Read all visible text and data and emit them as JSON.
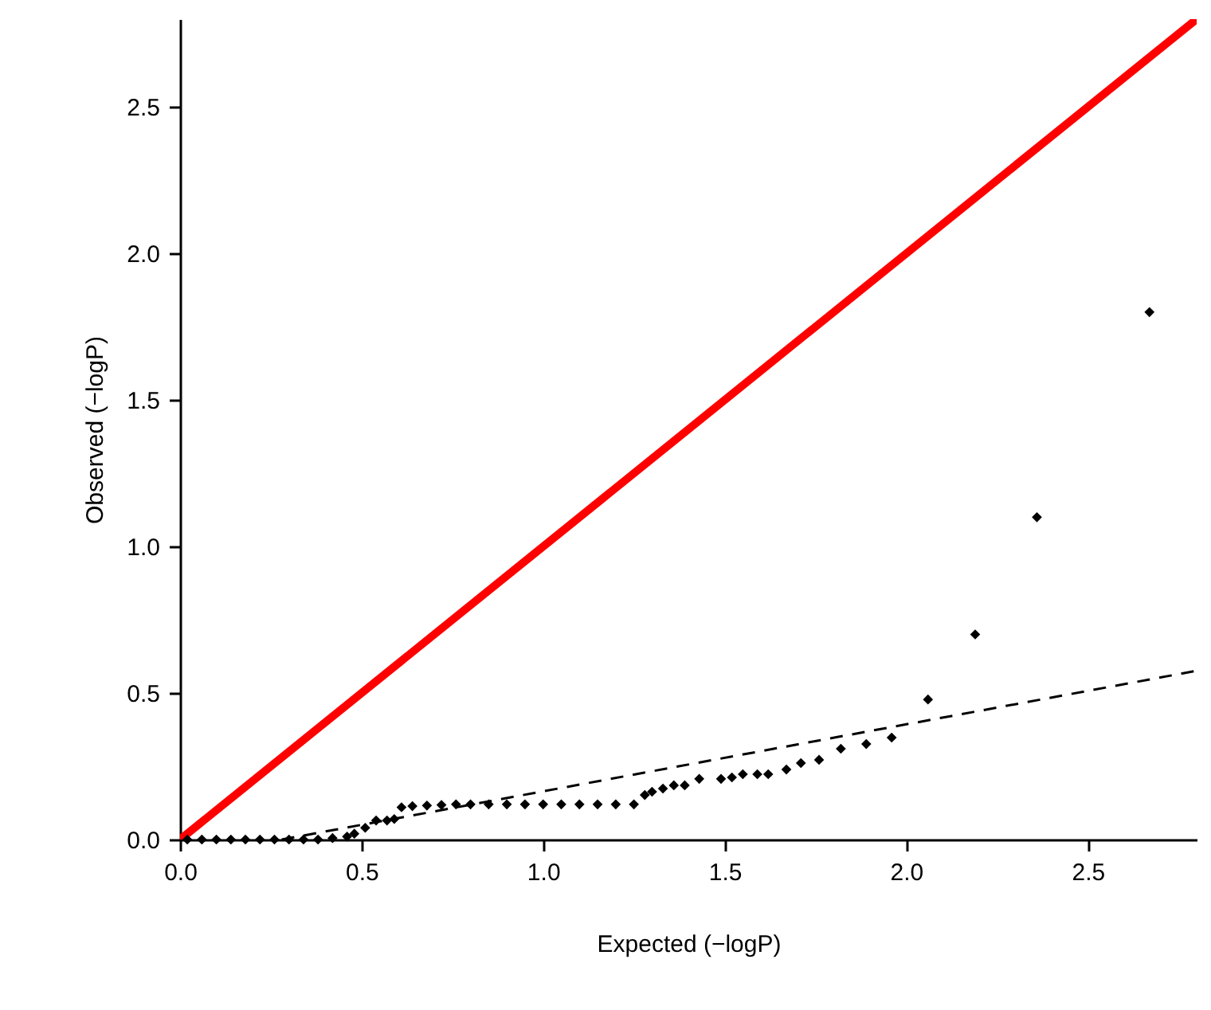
{
  "chart_data": {
    "type": "scatter",
    "xlabel": "Expected (−logP)",
    "ylabel": "Observed (−logP)",
    "xlim": [
      0,
      2.8
    ],
    "ylim": [
      0,
      2.8
    ],
    "xticks": [
      {
        "value": 0,
        "label": "0.0"
      },
      {
        "value": 0.5,
        "label": "0.5"
      },
      {
        "value": 1,
        "label": "1.0"
      },
      {
        "value": 1.5,
        "label": "1.5"
      },
      {
        "value": 2,
        "label": "2.0"
      },
      {
        "value": 2.5,
        "label": "2.5"
      }
    ],
    "yticks": [
      {
        "value": 0,
        "label": "0.0"
      },
      {
        "value": 0.5,
        "label": "0.5"
      },
      {
        "value": 1,
        "label": "1.0"
      },
      {
        "value": 1.5,
        "label": "1.5"
      },
      {
        "value": 2,
        "label": "2.0"
      },
      {
        "value": 2.5,
        "label": "2.5"
      }
    ],
    "series": [
      {
        "type": "line",
        "color": "#ff0000",
        "line_style": "solid",
        "x": [
          0,
          2.8
        ],
        "values": [
          0,
          2.8
        ]
      },
      {
        "type": "line",
        "color": "#000000",
        "line_style": "dashed",
        "x": [
          0.28,
          2.8
        ],
        "values": [
          0,
          0.576
        ]
      },
      {
        "marker": "diamond",
        "color": "#000000",
        "x": [
          0.02,
          0.06,
          0.1,
          0.14,
          0.18,
          0.22,
          0.26,
          0.3,
          0.34,
          0.38,
          0.42,
          0.46,
          0.48,
          0.51,
          0.54,
          0.57,
          0.59,
          0.61,
          0.64,
          0.68,
          0.72,
          0.76,
          0.8,
          0.85,
          0.9,
          0.95,
          1.0,
          1.05,
          1.1,
          1.15,
          1.2,
          1.25,
          1.28,
          1.3,
          1.33,
          1.36,
          1.39,
          1.43,
          1.49,
          1.52,
          1.55,
          1.59,
          1.62,
          1.67,
          1.71,
          1.76,
          1.82,
          1.89,
          1.96,
          2.06,
          2.19,
          2.36,
          2.67
        ],
        "values": [
          0,
          0,
          0,
          0,
          0,
          0,
          0,
          0,
          0,
          0,
          0.005,
          0.01,
          0.02,
          0.04,
          0.065,
          0.065,
          0.07,
          0.11,
          0.114,
          0.116,
          0.118,
          0.12,
          0.12,
          0.12,
          0.12,
          0.12,
          0.12,
          0.12,
          0.12,
          0.12,
          0.12,
          0.12,
          0.152,
          0.163,
          0.174,
          0.185,
          0.185,
          0.207,
          0.207,
          0.212,
          0.223,
          0.223,
          0.223,
          0.239,
          0.261,
          0.272,
          0.31,
          0.326,
          0.348,
          0.478,
          0.7,
          1.1,
          1.8
        ]
      }
    ]
  }
}
